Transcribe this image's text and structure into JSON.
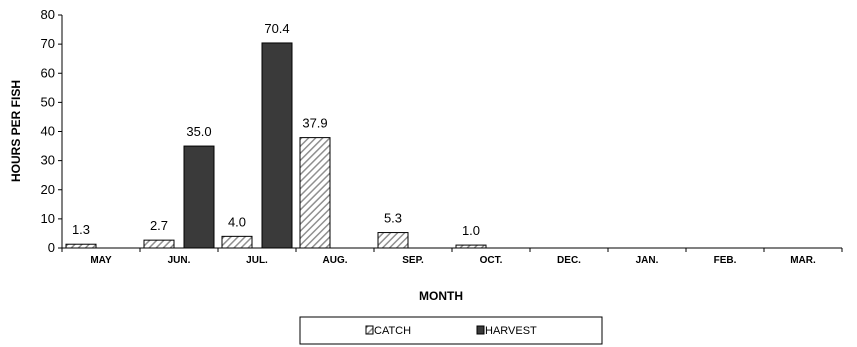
{
  "chart_data": {
    "type": "bar",
    "categories": [
      "MAY",
      "JUN.",
      "JUL.",
      "AUG.",
      "SEP.",
      "OCT.",
      "DEC.",
      "JAN.",
      "FEB.",
      "MAR."
    ],
    "series": [
      {
        "name": "CATCH",
        "values": [
          1.3,
          2.7,
          4.0,
          37.9,
          5.3,
          1.0,
          null,
          null,
          null,
          null
        ],
        "labels": [
          "1.3",
          "2.7",
          "4.0",
          "37.9",
          "5.3",
          "1.0",
          "",
          "",
          "",
          ""
        ]
      },
      {
        "name": "HARVEST",
        "values": [
          null,
          35.0,
          70.4,
          null,
          null,
          null,
          null,
          null,
          null,
          null
        ],
        "labels": [
          "",
          "35.0",
          "70.4",
          "",
          "",
          "",
          "",
          "",
          "",
          ""
        ]
      }
    ],
    "xlabel": "MONTH",
    "ylabel": "HOURS PER FISH",
    "ylim": [
      0,
      80
    ],
    "yticks": [
      "0",
      "10",
      "20",
      "30",
      "40",
      "50",
      "60",
      "70",
      "80"
    ],
    "grid": false,
    "legend_position": "bottom",
    "colors": {
      "catch_stroke": "#000000",
      "catch_hatch": "#909090",
      "harvest_fill": "#3a3a3a"
    }
  }
}
